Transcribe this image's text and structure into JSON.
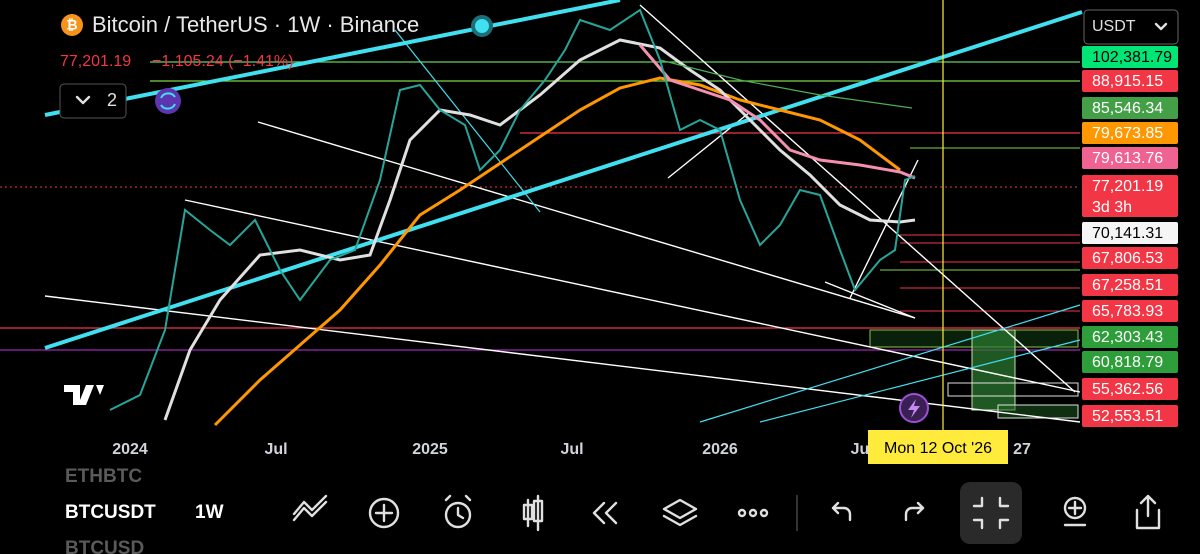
{
  "header": {
    "symbol": "Bitcoin / TetherUS · 1W · Binance",
    "price": "77,201.19",
    "change": "−1,105.24 (−1.41%)",
    "indicators": "2",
    "currency": "USDT"
  },
  "price_labels": [
    {
      "text": "102,381.79",
      "color": "#00e676",
      "text_color": "#000000"
    },
    {
      "text": "88,915.15",
      "color": "#f23645",
      "text_color": "#ffffff"
    },
    {
      "text": "85,546.34",
      "color": "#43a047",
      "text_color": "#ffffff"
    },
    {
      "text": "79,673.85",
      "color": "#ff9800",
      "text_color": "#ffffff"
    },
    {
      "text": "79,613.76",
      "color": "#f06292",
      "text_color": "#ffffff"
    },
    {
      "text": "77,201.19",
      "color": "#f23645",
      "text_color": "#ffffff"
    },
    {
      "text": "70,141.31",
      "color": "#f5f5f5",
      "text_color": "#000000"
    },
    {
      "text": "67,806.53",
      "color": "#f23645",
      "text_color": "#ffffff"
    },
    {
      "text": "67,258.51",
      "color": "#f23645",
      "text_color": "#ffffff"
    },
    {
      "text": "65,783.93",
      "color": "#f23645",
      "text_color": "#ffffff"
    },
    {
      "text": "62,303.43",
      "color": "#2e9e3a",
      "text_color": "#ffffff"
    },
    {
      "text": "60,818.79",
      "color": "#2e9e3a",
      "text_color": "#ffffff"
    },
    {
      "text": "55,362.56",
      "color": "#f23645",
      "text_color": "#ffffff"
    },
    {
      "text": "52,553.51",
      "color": "#f23645",
      "text_color": "#ffffff"
    }
  ],
  "countdown": "3d 3h",
  "x_axis": [
    "2024",
    "Jul",
    "2025",
    "Jul",
    "2026",
    "Ju",
    "27"
  ],
  "crosshair": "Mon 12 Oct '26",
  "symbols": {
    "above": "ETHBTC",
    "current": "BTCUSDT",
    "interval": "1W",
    "below": "BTCUSD"
  }
}
